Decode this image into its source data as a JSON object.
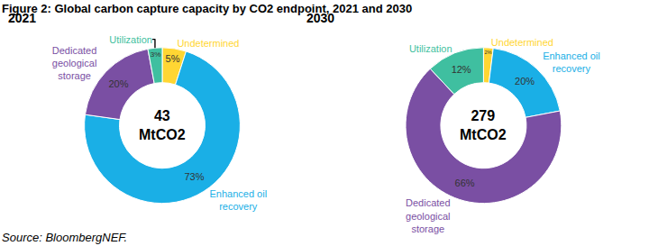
{
  "title": "Figure 2: Global carbon capture capacity by CO2 endpoint, 2021 and 2030",
  "source": "Source: BloombergNEF.",
  "chart_data": [
    {
      "type": "pie",
      "title": "2021",
      "center_text": "43 MtCO2",
      "categories": [
        "Undetermined",
        "Enhanced oil recovery",
        "Dedicated geological storage",
        "Utilization"
      ],
      "values": [
        5,
        73,
        20,
        3
      ],
      "value_labels": [
        "5%",
        "73%",
        "20%",
        "3%"
      ],
      "colors": [
        "#ffd633",
        "#1aafe6",
        "#7a4fa3",
        "#3fbfa0"
      ],
      "data_labels": true
    },
    {
      "type": "pie",
      "title": "2030",
      "center_text": "279 MtCO2",
      "categories": [
        "Undetermined",
        "Enhanced oil recovery",
        "Dedicated geological storage",
        "Utilization"
      ],
      "values": [
        2,
        20,
        66,
        12
      ],
      "value_labels": [
        "2%",
        "20%",
        "66%",
        "12%"
      ],
      "colors": [
        "#ffd633",
        "#1aafe6",
        "#7a4fa3",
        "#3fbfa0"
      ],
      "data_labels": true
    }
  ]
}
